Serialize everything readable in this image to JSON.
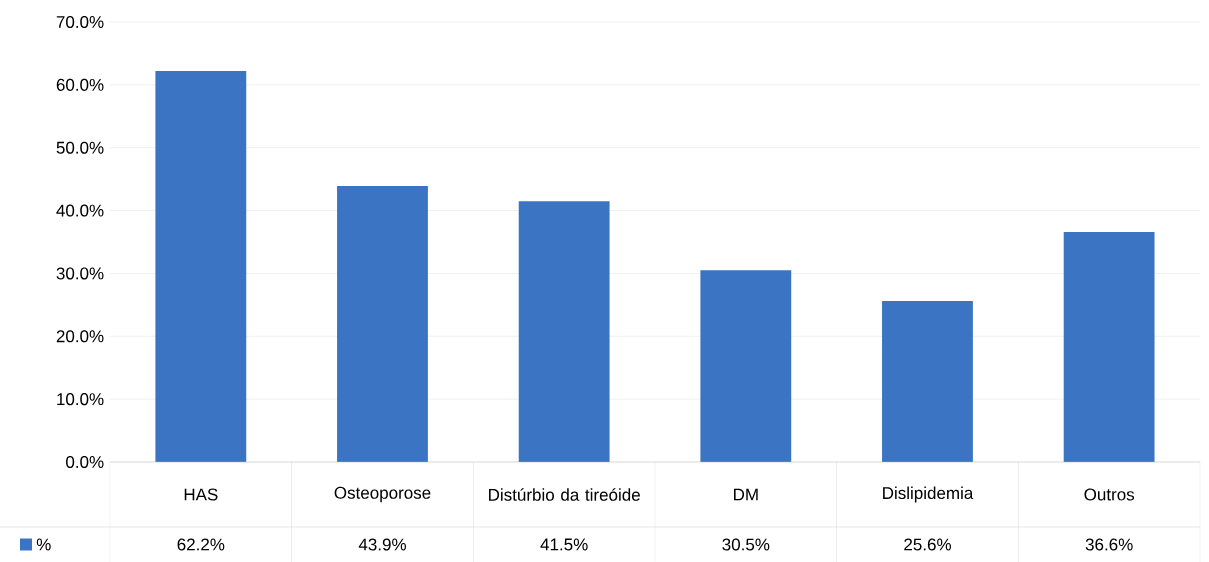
{
  "chart_data": {
    "type": "bar",
    "categories": [
      "HAS",
      "Osteoporose",
      "Distúrbio da tireóide",
      "DM",
      "Dislipidemia",
      "Outros"
    ],
    "series": [
      {
        "name": "%",
        "color": "#3a74c2",
        "values": [
          62.2,
          43.9,
          41.5,
          30.5,
          25.6,
          36.6
        ],
        "value_labels": [
          "62.2%",
          "43.9%",
          "41.5%",
          "30.5%",
          "25.6%",
          "36.6%"
        ]
      }
    ],
    "ylim": [
      0,
      70
    ],
    "yticks": [
      {
        "value": 0,
        "label": "0.0%"
      },
      {
        "value": 10,
        "label": "10.0%"
      },
      {
        "value": 20,
        "label": "20.0%"
      },
      {
        "value": 30,
        "label": "30.0%"
      },
      {
        "value": 40,
        "label": "40.0%"
      },
      {
        "value": 50,
        "label": "50.0%"
      },
      {
        "value": 60,
        "label": "60.0%"
      },
      {
        "value": 70,
        "label": "70.0%"
      }
    ],
    "grid": "y",
    "legend": "bottom"
  }
}
